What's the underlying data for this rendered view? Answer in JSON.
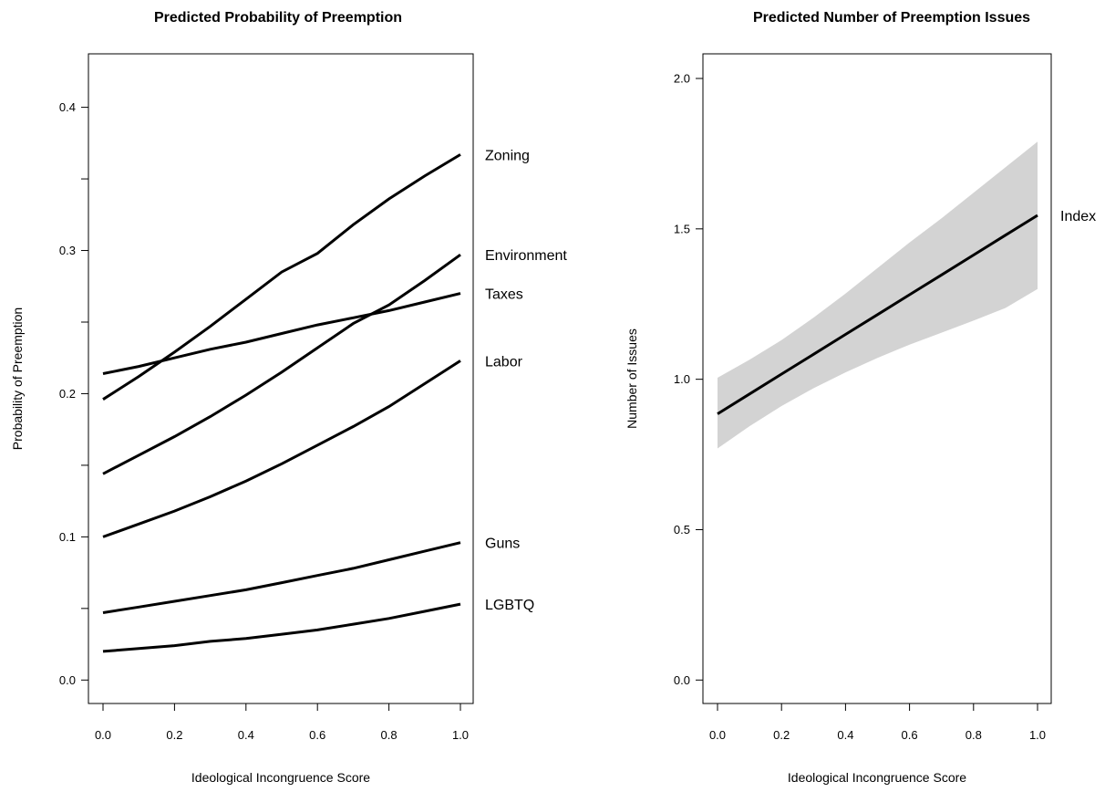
{
  "chart_data": [
    {
      "type": "line",
      "title": "Predicted Probability of Preemption",
      "xlabel": "Ideological Incongruence Score",
      "ylabel": "Probability of Preemption",
      "xlim": [
        0.0,
        1.0
      ],
      "ylim": [
        0.0,
        0.4
      ],
      "xticks": [
        "0.0",
        "0.2",
        "0.4",
        "0.6",
        "0.8",
        "1.0"
      ],
      "yticks": [
        "0.0",
        "0.1",
        "0.2",
        "0.3",
        "0.4"
      ],
      "grid": false,
      "line_color": "#000000",
      "x": [
        0.0,
        0.1,
        0.2,
        0.3,
        0.4,
        0.5,
        0.6,
        0.7,
        0.8,
        0.9,
        1.0
      ],
      "series": [
        {
          "name": "Zoning",
          "values": [
            0.196,
            0.212,
            0.229,
            0.247,
            0.266,
            0.285,
            0.298,
            0.318,
            0.336,
            0.352,
            0.367
          ]
        },
        {
          "name": "Environment",
          "values": [
            0.144,
            0.157,
            0.17,
            0.184,
            0.199,
            0.215,
            0.232,
            0.249,
            0.262,
            0.279,
            0.297
          ]
        },
        {
          "name": "Taxes",
          "values": [
            0.214,
            0.219,
            0.225,
            0.231,
            0.236,
            0.242,
            0.248,
            0.253,
            0.258,
            0.264,
            0.27
          ]
        },
        {
          "name": "Labor",
          "values": [
            0.1,
            0.109,
            0.118,
            0.128,
            0.139,
            0.151,
            0.164,
            0.177,
            0.191,
            0.207,
            0.223
          ]
        },
        {
          "name": "Guns",
          "values": [
            0.047,
            0.051,
            0.055,
            0.059,
            0.063,
            0.068,
            0.073,
            0.078,
            0.084,
            0.09,
            0.096
          ]
        },
        {
          "name": "LGBTQ",
          "values": [
            0.02,
            0.022,
            0.024,
            0.027,
            0.029,
            0.032,
            0.035,
            0.039,
            0.043,
            0.048,
            0.053
          ]
        }
      ]
    },
    {
      "type": "line",
      "title": "Predicted Number of Preemption Issues",
      "xlabel": "Ideological Incongruence Score",
      "ylabel": "Number of Issues",
      "xlim": [
        0.0,
        1.0
      ],
      "ylim": [
        0.0,
        2.0
      ],
      "xticks": [
        "0.0",
        "0.2",
        "0.4",
        "0.6",
        "0.8",
        "1.0"
      ],
      "yticks": [
        "0.0",
        "0.5",
        "1.0",
        "1.5",
        "2.0"
      ],
      "grid": false,
      "line_color": "#000000",
      "band_color": "#d3d3d3",
      "x": [
        0.0,
        0.1,
        0.2,
        0.3,
        0.4,
        0.5,
        0.6,
        0.7,
        0.8,
        0.9,
        1.0
      ],
      "series": [
        {
          "name": "Index",
          "values": [
            0.885,
            0.951,
            1.017,
            1.083,
            1.149,
            1.215,
            1.281,
            1.347,
            1.413,
            1.479,
            1.545
          ],
          "lower": [
            0.77,
            0.844,
            0.911,
            0.97,
            1.023,
            1.071,
            1.115,
            1.155,
            1.195,
            1.237,
            1.3
          ],
          "upper": [
            1.005,
            1.065,
            1.13,
            1.205,
            1.285,
            1.37,
            1.455,
            1.535,
            1.62,
            1.705,
            1.79
          ]
        }
      ]
    }
  ]
}
